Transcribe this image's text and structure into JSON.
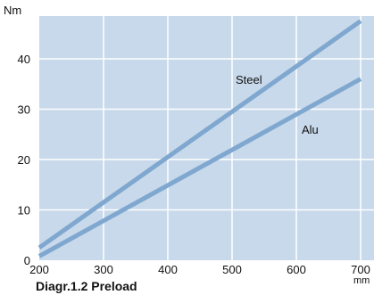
{
  "chart_data": {
    "type": "line",
    "title": "Diagr.1.2  Preload",
    "xlabel": "mm",
    "ylabel": "Nm",
    "xlim": [
      200,
      700
    ],
    "ylim": [
      0,
      49
    ],
    "x_ticks": [
      "200",
      "300",
      "400",
      "500",
      "600",
      "700"
    ],
    "y_ticks": [
      "0",
      "10",
      "20",
      "30",
      "40"
    ],
    "grid": true,
    "background": "#c7d9ea",
    "grid_color": "#ffffff",
    "line_color": "#7fa7cf",
    "series": [
      {
        "name": "Steel",
        "x": [
          200,
          700
        ],
        "y": [
          2.5,
          47.5
        ]
      },
      {
        "name": "Alu",
        "x": [
          200,
          700
        ],
        "y": [
          0.8,
          36.0
        ]
      }
    ]
  }
}
